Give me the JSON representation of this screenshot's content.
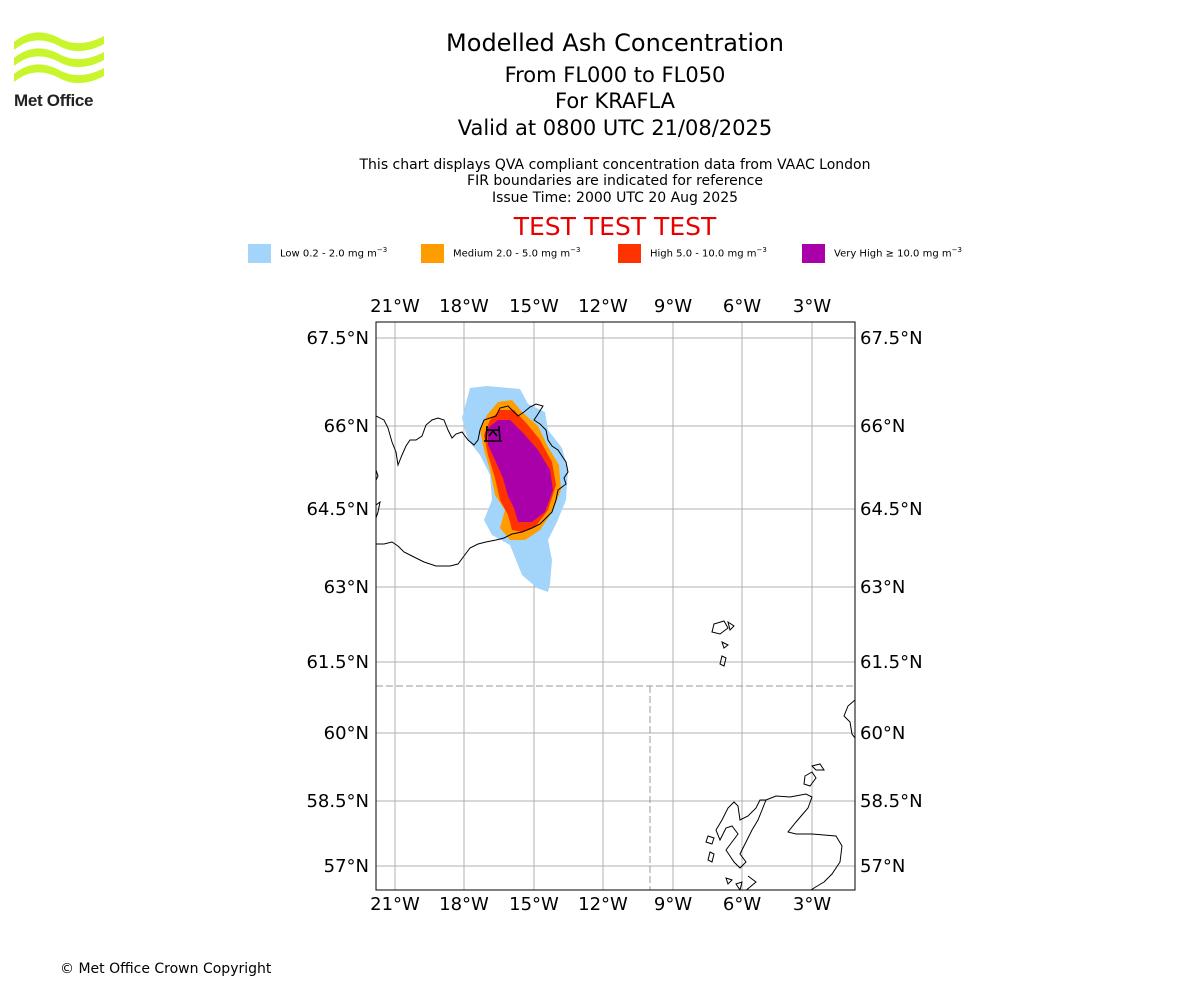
{
  "logo": {
    "text": "Met Office",
    "color": "#c8f52b"
  },
  "title": "Modelled Ash Concentration",
  "flight_levels": "From FL000 to FL050",
  "volcano_line": "For KRAFLA",
  "valid_line": "Valid at 0800 UTC 21/08/2025",
  "subtitle_lines": [
    "This chart displays QVA compliant concentration data from VAAC London",
    "FIR boundaries are indicated for reference",
    "Issue Time: 2000 UTC 20 Aug 2025"
  ],
  "test_banner": "TEST TEST TEST",
  "legend": [
    {
      "label": "Low 0.2 - 2.0 mg m",
      "exp": "−3",
      "color": "#a3d4fa"
    },
    {
      "label": "Medium 2.0 - 5.0 mg m",
      "exp": "−3",
      "color": "#ff9c00"
    },
    {
      "label": "High 5.0 - 10.0 mg m",
      "exp": "−3",
      "color": "#ff3300"
    },
    {
      "label": "Very High  ≥  10.0 mg m",
      "exp": "−3",
      "color": "#aa00aa"
    }
  ],
  "map": {
    "lon_ticks": [
      "21°W",
      "18°W",
      "15°W",
      "12°W",
      "9°W",
      "6°W",
      "3°W"
    ],
    "lat_ticks": [
      "67.5°N",
      "66°N",
      "64.5°N",
      "63°N",
      "61.5°N",
      "60°N",
      "58.5°N",
      "57°N"
    ],
    "volcano_marker": "volcano-symbol",
    "fir_boundary_style": "dashed grey"
  },
  "copyright": "© Met Office Crown Copyright"
}
